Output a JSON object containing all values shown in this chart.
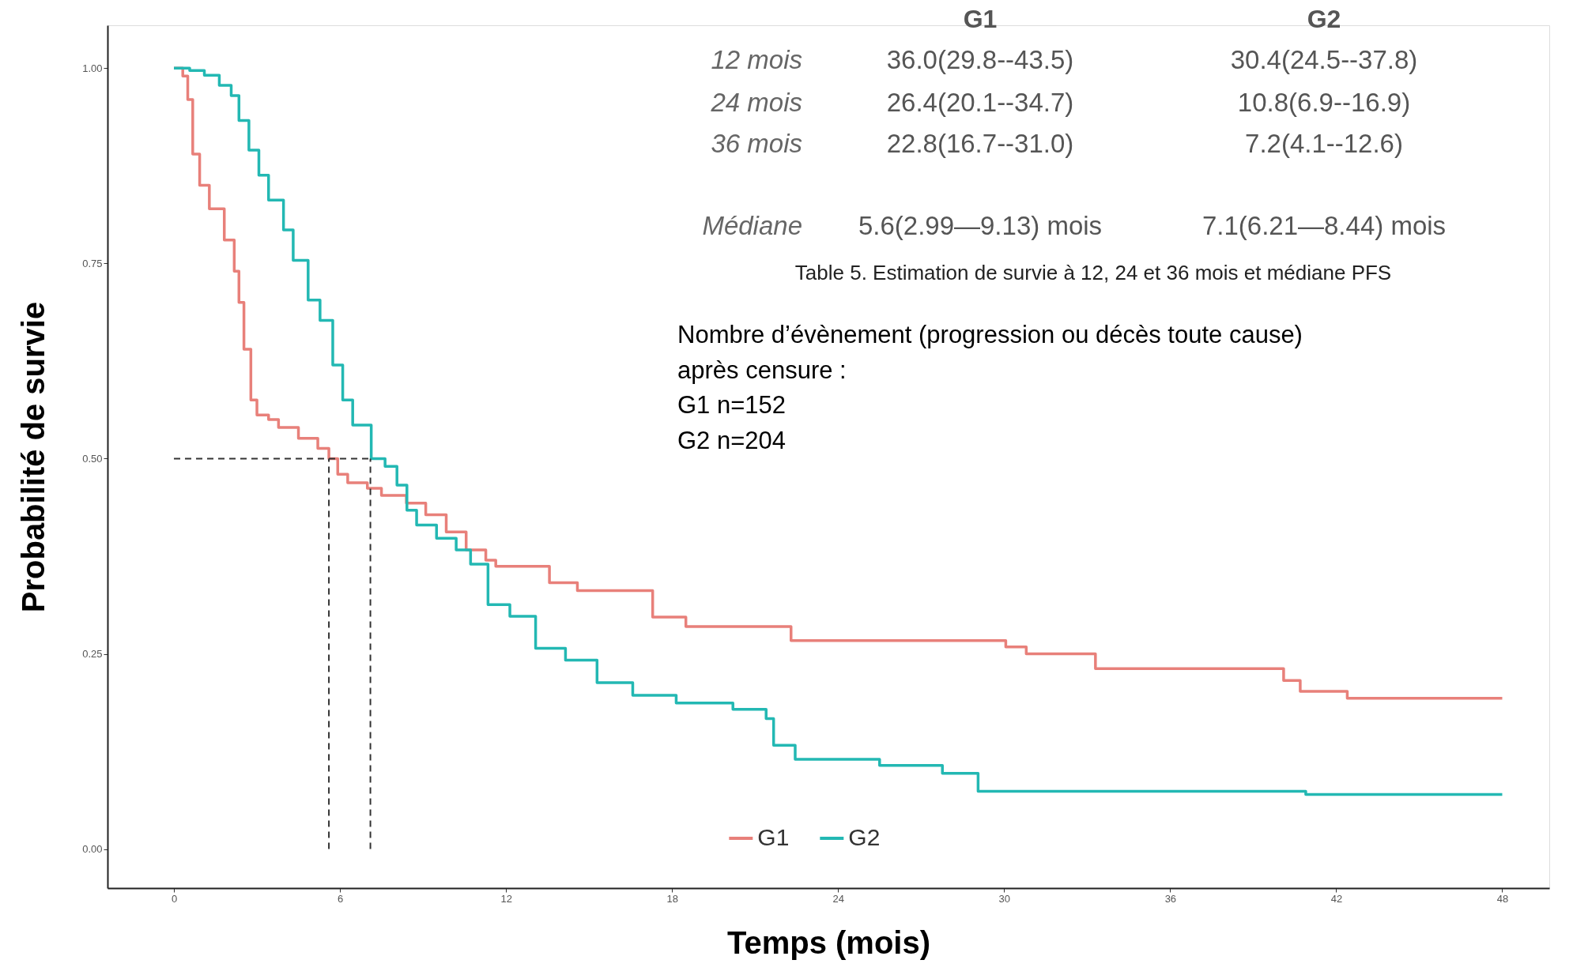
{
  "chart_data": {
    "type": "step",
    "xlabel": "Temps (mois)",
    "ylabel": "Probabilité de survie",
    "xlim": [
      -2.4,
      49.7
    ],
    "ylim": [
      -0.05,
      1.055
    ],
    "xticks": [
      0,
      6,
      12,
      18,
      24,
      30,
      36,
      42,
      48
    ],
    "yticks": [
      {
        "value": 0,
        "label": "0.00"
      },
      {
        "value": 0.25,
        "label": "0.25"
      },
      {
        "value": 0.5,
        "label": "0.50"
      },
      {
        "value": 0.75,
        "label": "0.75"
      },
      {
        "value": 1,
        "label": "1.00"
      }
    ],
    "grid": false,
    "legend": "bottom",
    "line_style": "solid",
    "series": [
      {
        "name": "G1",
        "color": "#e8807a",
        "x": [
          0,
          0.32,
          0.5,
          0.68,
          0.93,
          1.28,
          1.82,
          2.18,
          2.35,
          2.53,
          2.78,
          3.0,
          3.42,
          3.78,
          4.5,
          5.2,
          5.6,
          5.92,
          6.28,
          6.99,
          7.5,
          8.4,
          9.1,
          9.84,
          10.56,
          11.27,
          11.63,
          13.57,
          14.58,
          17.3,
          18.5,
          22.3,
          30.06,
          30.8,
          33.3,
          40.1,
          40.7,
          42.4,
          48
        ],
        "values": [
          1.0,
          0.99,
          0.96,
          0.89,
          0.85,
          0.82,
          0.78,
          0.74,
          0.7,
          0.64,
          0.575,
          0.556,
          0.55,
          0.54,
          0.526,
          0.513,
          0.5,
          0.48,
          0.469,
          0.462,
          0.453,
          0.443,
          0.428,
          0.406,
          0.383,
          0.37,
          0.362,
          0.341,
          0.331,
          0.297,
          0.285,
          0.267,
          0.259,
          0.25,
          0.231,
          0.216,
          0.202,
          0.193,
          0.193
        ]
      },
      {
        "name": "G2",
        "color": "#23b8b3",
        "x": [
          0,
          0.57,
          1.1,
          1.64,
          2.07,
          2.35,
          2.71,
          3.07,
          3.42,
          3.96,
          4.31,
          4.85,
          5.28,
          5.74,
          6.1,
          6.46,
          7.13,
          7.63,
          8.06,
          8.42,
          8.77,
          9.49,
          10.2,
          10.72,
          11.35,
          12.14,
          13.07,
          14.15,
          15.29,
          16.58,
          18.15,
          20.2,
          21.4,
          21.67,
          22.45,
          25.5,
          27.77,
          29.06,
          40.9,
          48
        ],
        "values": [
          1.0,
          0.997,
          0.991,
          0.978,
          0.965,
          0.933,
          0.895,
          0.863,
          0.831,
          0.793,
          0.754,
          0.703,
          0.677,
          0.62,
          0.575,
          0.543,
          0.5,
          0.49,
          0.466,
          0.434,
          0.415,
          0.398,
          0.383,
          0.365,
          0.313,
          0.298,
          0.257,
          0.242,
          0.213,
          0.197,
          0.187,
          0.179,
          0.167,
          0.133,
          0.115,
          0.107,
          0.097,
          0.074,
          0.07,
          0.07
        ]
      }
    ],
    "ref_lines": [
      {
        "axis": "y",
        "value": 0.5,
        "line_style": "dashed",
        "color": "#333333"
      },
      {
        "axis": "x",
        "value": 5.6,
        "line_style": "dashed",
        "color": "#333333"
      },
      {
        "axis": "x",
        "value": 7.1,
        "line_style": "dashed",
        "color": "#333333"
      }
    ],
    "annotations": [
      "G1",
      "G2",
      "12 mois",
      "36.0(29.8--43.5)",
      "30.4(24.5--37.8)",
      "24 mois",
      "26.4(20.1--34.7)",
      "10.8(6.9--16.9)",
      "36 mois",
      "22.8(16.7--31.0)",
      "7.2(4.1--12.6)",
      "Médiane",
      "5.6(2.99—9.13) mois",
      "7.1(6.21—8.44) mois",
      "Table 5. Estimation de survie à 12, 24 et 36 mois et médiane PFS",
      "Nombre d’évènement (progression ou décès toute cause)",
      "après censure :",
      "G1 n=152",
      "G2 n=204"
    ]
  }
}
